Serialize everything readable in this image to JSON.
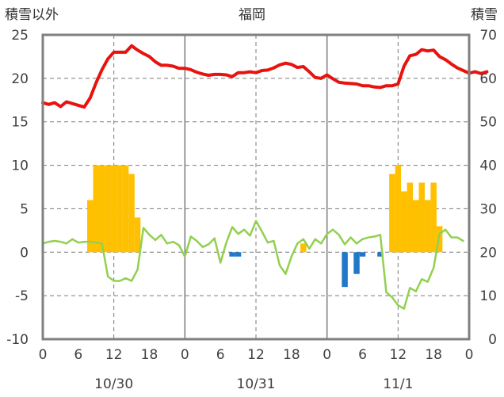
{
  "chart_data": {
    "type": "line+bar",
    "title": "福岡",
    "left_axis_label": "積雪以外",
    "right_axis_label": "積雪",
    "left_ylim": [
      -10,
      25
    ],
    "right_ylim": [
      0,
      70
    ],
    "left_ticks": [
      "25",
      "20",
      "15",
      "10",
      "5",
      "0",
      "-5",
      "-10"
    ],
    "right_ticks": [
      "70",
      "60",
      "50",
      "40",
      "30",
      "20",
      "10",
      "0"
    ],
    "x_hour_ticks": [
      "0",
      "6",
      "12",
      "18",
      "0",
      "6",
      "12",
      "18",
      "0",
      "6",
      "12",
      "18",
      "0"
    ],
    "date_labels": [
      "10/30",
      "10/31",
      "11/1"
    ],
    "grid": "dashed vertical lines at 12:00, solid vertical lines at day boundaries, dashed horizontal lines",
    "colors": {
      "temperature": "#e8130f",
      "green_line": "#92d050",
      "positive_bars": "#ffc000",
      "negative_bars": "#1f78c8",
      "frame": "#808080",
      "grid": "#7a7a7a"
    },
    "series": [
      {
        "name": "",
        "axis": "right",
        "kind": "line",
        "color": "#e8130f",
        "values": [
          54.4,
          54,
          54.4,
          53.5,
          54.6,
          54.2,
          53.8,
          53.4,
          55.5,
          59,
          62,
          64.5,
          66,
          66,
          66,
          67.5,
          66.5,
          65.7,
          65,
          63.8,
          63,
          63,
          62.8,
          62.3,
          62.3,
          62,
          61.4,
          61,
          60.7,
          60.9,
          60.9,
          60.8,
          60.4,
          61.3,
          61.3,
          61.5,
          61.3,
          61.8,
          61.9,
          62.4,
          63.1,
          63.5,
          63.2,
          62.5,
          62.7,
          61.5,
          60.2,
          60,
          60.8,
          59.9,
          59.1,
          58.9,
          58.8,
          58.7,
          58.3,
          58.3,
          58,
          57.9,
          58.3,
          58.3,
          58.7,
          62.8,
          65.2,
          65.5,
          66.6,
          66.3,
          66.5,
          65,
          64.3,
          63.3,
          62.4,
          61.8,
          61.2,
          61.5,
          61.1,
          61.5
        ]
      },
      {
        "name": "",
        "axis": "left",
        "kind": "line",
        "color": "#92d050",
        "values": [
          1,
          1.2,
          1.3,
          1.2,
          1,
          1.5,
          1.1,
          1.2,
          1.2,
          1.1,
          1,
          -2.8,
          -3.3,
          -3.3,
          -3,
          -3.3,
          -2,
          2.8,
          2,
          1.4,
          2,
          1,
          1.2,
          0.8,
          -0.5,
          1.8,
          1.3,
          0.6,
          0.9,
          1.6,
          -1.2,
          1.1,
          2.9,
          2.1,
          2.6,
          1.9,
          3.6,
          2.4,
          1.1,
          1.3,
          -1.5,
          -2.5,
          -0.5,
          1,
          1.5,
          0.4,
          1.5,
          1,
          2.1,
          2.6,
          2,
          0.9,
          1.7,
          1,
          1.5,
          1.7,
          1.8,
          2,
          -4.6,
          -5.2,
          -6.1,
          -6.5,
          -4.1,
          -4.5,
          -3.1,
          -3.4,
          -1.8,
          2.1,
          2.6,
          1.7,
          1.7,
          1.3
        ]
      },
      {
        "name": "",
        "axis": "left",
        "kind": "bar",
        "color_positive": "#ffc000",
        "color_negative": "#1f78c8",
        "values": [
          0,
          0,
          0,
          0,
          0,
          0,
          0,
          0,
          6,
          10,
          10,
          10,
          10,
          10,
          10,
          9,
          4,
          0,
          0,
          0,
          0,
          0,
          0,
          0,
          0,
          0,
          0,
          0,
          0,
          0,
          0,
          0,
          0,
          0,
          0,
          0,
          0,
          0,
          0,
          0,
          0,
          0,
          0,
          0,
          1,
          0,
          0,
          0,
          0,
          0,
          0,
          -4,
          0,
          -2.5,
          0,
          0,
          0,
          0,
          0,
          9,
          10,
          7,
          8,
          6,
          8,
          6,
          8,
          3,
          0,
          0,
          0,
          0,
          0,
          0
        ]
      },
      {
        "name": "",
        "axis": "left",
        "kind": "bar_negative_extra",
        "color": "#1f78c8",
        "values_by_hour": {
          "32": -0.5,
          "33": -0.5,
          "54": -0.5,
          "57": -0.5
        }
      }
    ]
  }
}
